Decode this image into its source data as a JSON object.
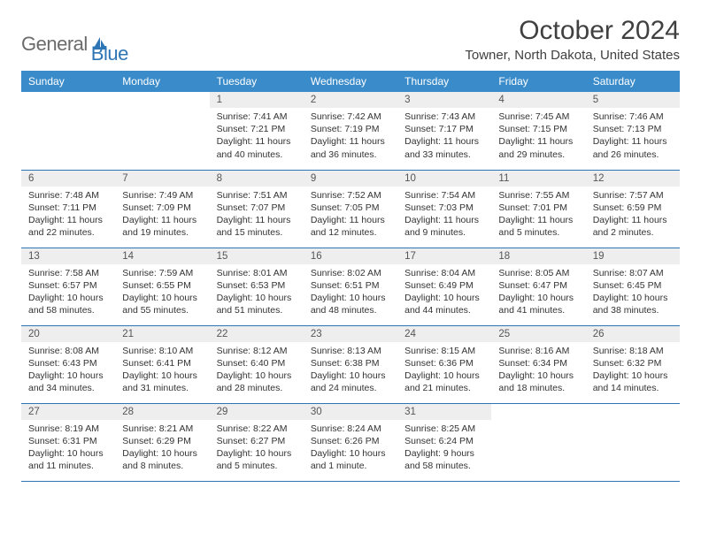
{
  "logo": {
    "general": "General",
    "blue": "Blue"
  },
  "title": "October 2024",
  "location": "Towner, North Dakota, United States",
  "day_headers": [
    "Sunday",
    "Monday",
    "Tuesday",
    "Wednesday",
    "Thursday",
    "Friday",
    "Saturday"
  ],
  "colors": {
    "header_bg": "#3a8bc9",
    "header_text": "#ffffff",
    "day_num_bg": "#eeeeee",
    "border": "#2e75b6",
    "text": "#333333",
    "logo_gray": "#6b6b6b",
    "logo_blue": "#2e75b6"
  },
  "layout": {
    "columns": 7,
    "rows": 5,
    "first_day_column": 2,
    "days_in_month": 31
  },
  "days": [
    {
      "n": "1",
      "sunrise": "Sunrise: 7:41 AM",
      "sunset": "Sunset: 7:21 PM",
      "daylight": "Daylight: 11 hours and 40 minutes."
    },
    {
      "n": "2",
      "sunrise": "Sunrise: 7:42 AM",
      "sunset": "Sunset: 7:19 PM",
      "daylight": "Daylight: 11 hours and 36 minutes."
    },
    {
      "n": "3",
      "sunrise": "Sunrise: 7:43 AM",
      "sunset": "Sunset: 7:17 PM",
      "daylight": "Daylight: 11 hours and 33 minutes."
    },
    {
      "n": "4",
      "sunrise": "Sunrise: 7:45 AM",
      "sunset": "Sunset: 7:15 PM",
      "daylight": "Daylight: 11 hours and 29 minutes."
    },
    {
      "n": "5",
      "sunrise": "Sunrise: 7:46 AM",
      "sunset": "Sunset: 7:13 PM",
      "daylight": "Daylight: 11 hours and 26 minutes."
    },
    {
      "n": "6",
      "sunrise": "Sunrise: 7:48 AM",
      "sunset": "Sunset: 7:11 PM",
      "daylight": "Daylight: 11 hours and 22 minutes."
    },
    {
      "n": "7",
      "sunrise": "Sunrise: 7:49 AM",
      "sunset": "Sunset: 7:09 PM",
      "daylight": "Daylight: 11 hours and 19 minutes."
    },
    {
      "n": "8",
      "sunrise": "Sunrise: 7:51 AM",
      "sunset": "Sunset: 7:07 PM",
      "daylight": "Daylight: 11 hours and 15 minutes."
    },
    {
      "n": "9",
      "sunrise": "Sunrise: 7:52 AM",
      "sunset": "Sunset: 7:05 PM",
      "daylight": "Daylight: 11 hours and 12 minutes."
    },
    {
      "n": "10",
      "sunrise": "Sunrise: 7:54 AM",
      "sunset": "Sunset: 7:03 PM",
      "daylight": "Daylight: 11 hours and 9 minutes."
    },
    {
      "n": "11",
      "sunrise": "Sunrise: 7:55 AM",
      "sunset": "Sunset: 7:01 PM",
      "daylight": "Daylight: 11 hours and 5 minutes."
    },
    {
      "n": "12",
      "sunrise": "Sunrise: 7:57 AM",
      "sunset": "Sunset: 6:59 PM",
      "daylight": "Daylight: 11 hours and 2 minutes."
    },
    {
      "n": "13",
      "sunrise": "Sunrise: 7:58 AM",
      "sunset": "Sunset: 6:57 PM",
      "daylight": "Daylight: 10 hours and 58 minutes."
    },
    {
      "n": "14",
      "sunrise": "Sunrise: 7:59 AM",
      "sunset": "Sunset: 6:55 PM",
      "daylight": "Daylight: 10 hours and 55 minutes."
    },
    {
      "n": "15",
      "sunrise": "Sunrise: 8:01 AM",
      "sunset": "Sunset: 6:53 PM",
      "daylight": "Daylight: 10 hours and 51 minutes."
    },
    {
      "n": "16",
      "sunrise": "Sunrise: 8:02 AM",
      "sunset": "Sunset: 6:51 PM",
      "daylight": "Daylight: 10 hours and 48 minutes."
    },
    {
      "n": "17",
      "sunrise": "Sunrise: 8:04 AM",
      "sunset": "Sunset: 6:49 PM",
      "daylight": "Daylight: 10 hours and 44 minutes."
    },
    {
      "n": "18",
      "sunrise": "Sunrise: 8:05 AM",
      "sunset": "Sunset: 6:47 PM",
      "daylight": "Daylight: 10 hours and 41 minutes."
    },
    {
      "n": "19",
      "sunrise": "Sunrise: 8:07 AM",
      "sunset": "Sunset: 6:45 PM",
      "daylight": "Daylight: 10 hours and 38 minutes."
    },
    {
      "n": "20",
      "sunrise": "Sunrise: 8:08 AM",
      "sunset": "Sunset: 6:43 PM",
      "daylight": "Daylight: 10 hours and 34 minutes."
    },
    {
      "n": "21",
      "sunrise": "Sunrise: 8:10 AM",
      "sunset": "Sunset: 6:41 PM",
      "daylight": "Daylight: 10 hours and 31 minutes."
    },
    {
      "n": "22",
      "sunrise": "Sunrise: 8:12 AM",
      "sunset": "Sunset: 6:40 PM",
      "daylight": "Daylight: 10 hours and 28 minutes."
    },
    {
      "n": "23",
      "sunrise": "Sunrise: 8:13 AM",
      "sunset": "Sunset: 6:38 PM",
      "daylight": "Daylight: 10 hours and 24 minutes."
    },
    {
      "n": "24",
      "sunrise": "Sunrise: 8:15 AM",
      "sunset": "Sunset: 6:36 PM",
      "daylight": "Daylight: 10 hours and 21 minutes."
    },
    {
      "n": "25",
      "sunrise": "Sunrise: 8:16 AM",
      "sunset": "Sunset: 6:34 PM",
      "daylight": "Daylight: 10 hours and 18 minutes."
    },
    {
      "n": "26",
      "sunrise": "Sunrise: 8:18 AM",
      "sunset": "Sunset: 6:32 PM",
      "daylight": "Daylight: 10 hours and 14 minutes."
    },
    {
      "n": "27",
      "sunrise": "Sunrise: 8:19 AM",
      "sunset": "Sunset: 6:31 PM",
      "daylight": "Daylight: 10 hours and 11 minutes."
    },
    {
      "n": "28",
      "sunrise": "Sunrise: 8:21 AM",
      "sunset": "Sunset: 6:29 PM",
      "daylight": "Daylight: 10 hours and 8 minutes."
    },
    {
      "n": "29",
      "sunrise": "Sunrise: 8:22 AM",
      "sunset": "Sunset: 6:27 PM",
      "daylight": "Daylight: 10 hours and 5 minutes."
    },
    {
      "n": "30",
      "sunrise": "Sunrise: 8:24 AM",
      "sunset": "Sunset: 6:26 PM",
      "daylight": "Daylight: 10 hours and 1 minute."
    },
    {
      "n": "31",
      "sunrise": "Sunrise: 8:25 AM",
      "sunset": "Sunset: 6:24 PM",
      "daylight": "Daylight: 9 hours and 58 minutes."
    }
  ]
}
